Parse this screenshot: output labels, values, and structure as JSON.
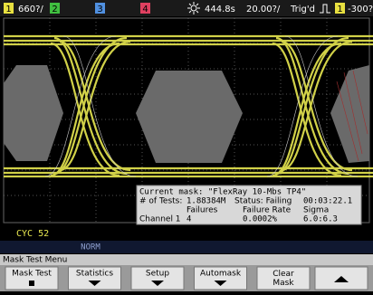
{
  "status_bar": {
    "ch1_num": "1",
    "ch1_scale": "660?/",
    "ch2_num": "2",
    "ch3_num": "3",
    "ch4_num": "4",
    "time_delay": "444.8s",
    "time_scale": "20.00?/",
    "trigger_status": "Trig'd",
    "trigger_source": "1",
    "trigger_level": "-300?"
  },
  "mask_info": {
    "current_mask": "Current mask: \"FlexRay 10-Mbs TP4\"",
    "tests_label": "# of Tests:",
    "tests_value": "1.88384M",
    "status": "Status: Failing",
    "elapsed": "00:03:22.1",
    "col_failures": "Failures",
    "col_rate": "Failure Rate",
    "col_sigma": "Sigma",
    "row_label": "Channel 1",
    "row_failures": "4",
    "row_rate": "0.0002%",
    "row_sigma": "6.0:6.3"
  },
  "counter": "CYC 52",
  "acq_mode": "NORM",
  "menu": {
    "title": "Mask Test Menu",
    "softkeys": [
      "Mask Test",
      "Statistics",
      "Setup",
      "Automask",
      "Clear Mask"
    ]
  }
}
